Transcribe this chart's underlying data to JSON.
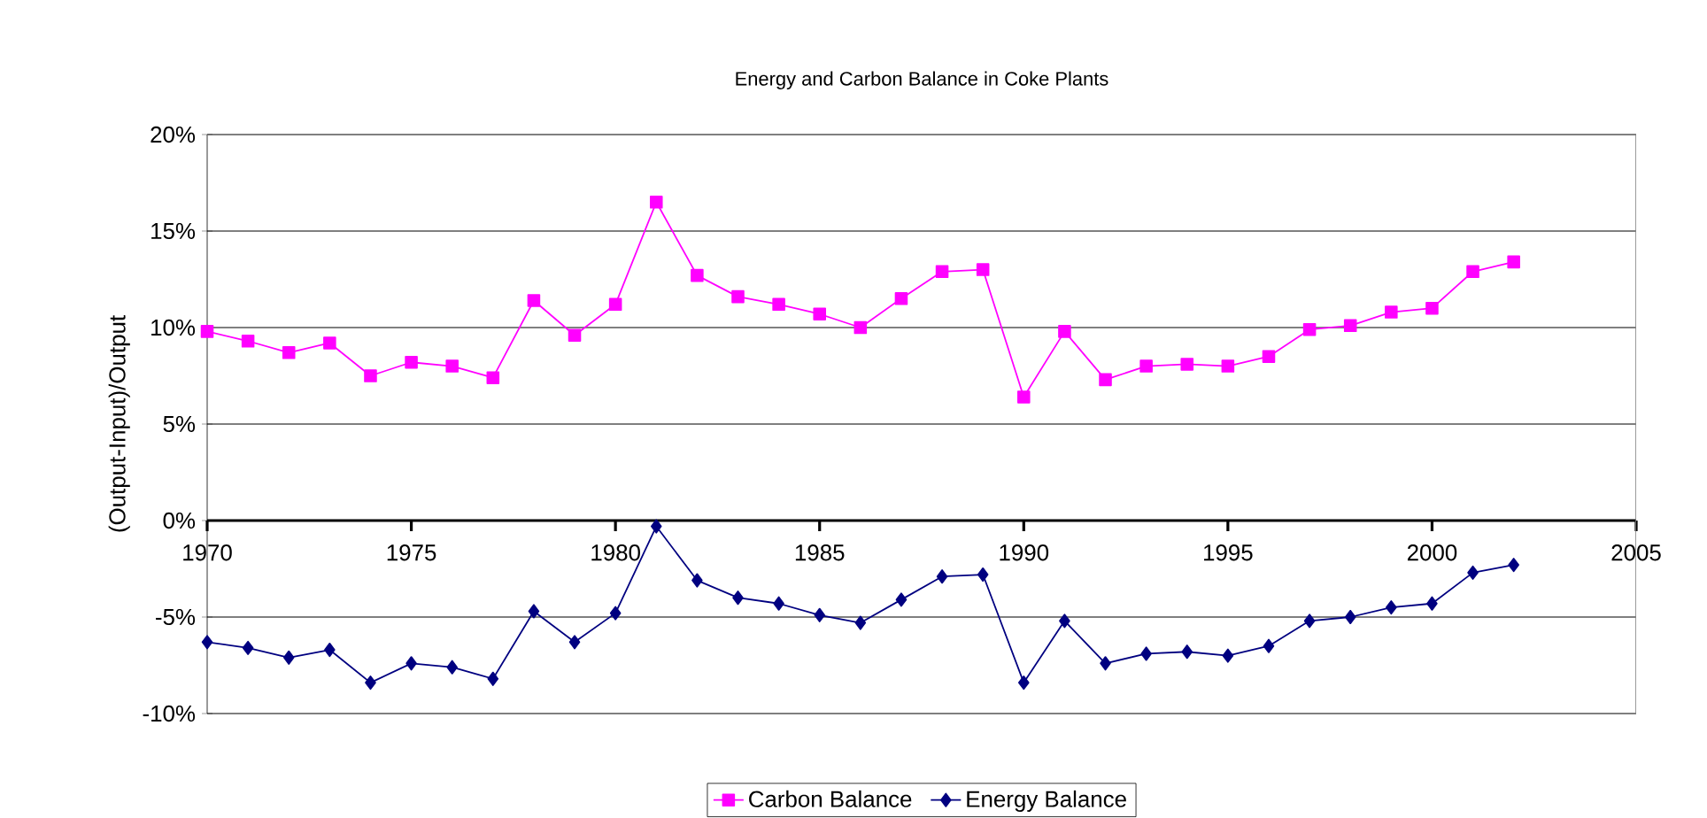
{
  "chart_data": {
    "type": "line",
    "title": "Energy and Carbon Balance in Coke Plants",
    "ylabel": "(Output-Input)/Output",
    "x": [
      1970,
      1971,
      1972,
      1973,
      1974,
      1975,
      1976,
      1977,
      1978,
      1979,
      1980,
      1981,
      1982,
      1983,
      1984,
      1985,
      1986,
      1987,
      1988,
      1989,
      1990,
      1991,
      1992,
      1993,
      1994,
      1995,
      1996,
      1997,
      1998,
      1999,
      2000,
      2001,
      2002
    ],
    "series": [
      {
        "name": "Carbon Balance",
        "color": "#ff00ff",
        "marker": "square",
        "values": [
          9.8,
          9.3,
          8.7,
          9.2,
          7.5,
          8.2,
          8.0,
          7.4,
          11.4,
          9.6,
          11.2,
          16.5,
          12.7,
          11.6,
          11.2,
          10.7,
          10.0,
          11.5,
          12.9,
          13.0,
          6.4,
          9.8,
          7.3,
          8.0,
          8.1,
          8.0,
          8.5,
          9.9,
          10.1,
          10.8,
          11.0,
          12.9,
          13.4
        ]
      },
      {
        "name": "Energy Balance",
        "color": "#000080",
        "marker": "diamond",
        "values": [
          -6.3,
          -6.6,
          -7.1,
          -6.7,
          -8.4,
          -7.4,
          -7.6,
          -8.2,
          -4.7,
          -6.3,
          -4.8,
          -0.3,
          -3.1,
          -4.0,
          -4.3,
          -4.9,
          -5.3,
          -4.1,
          -2.9,
          -2.8,
          -8.4,
          -5.2,
          -7.4,
          -6.9,
          -6.8,
          -7.0,
          -6.5,
          -5.2,
          -5.0,
          -4.5,
          -4.3,
          -2.7,
          -2.3
        ]
      }
    ],
    "xlim": [
      1970,
      2005
    ],
    "xticks": [
      1970,
      1975,
      1980,
      1985,
      1990,
      1995,
      2000,
      2005
    ],
    "ylim": [
      -10,
      20
    ],
    "yticks": [
      {
        "value": -10,
        "label": "-10%"
      },
      {
        "value": -5,
        "label": "-5%"
      },
      {
        "value": 0,
        "label": "0%"
      },
      {
        "value": 5,
        "label": "5%"
      },
      {
        "value": 10,
        "label": "10%"
      },
      {
        "value": 15,
        "label": "15%"
      },
      {
        "value": 20,
        "label": "20%"
      }
    ],
    "grid": "y",
    "legend": "bottom",
    "line_style": "solid"
  }
}
